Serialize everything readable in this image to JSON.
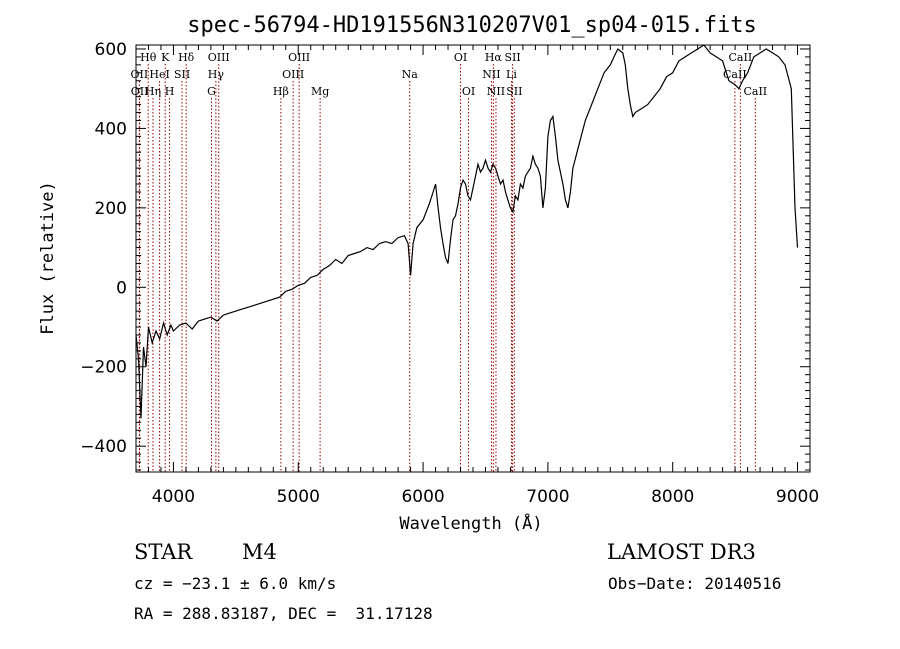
{
  "chart_data": {
    "type": "line",
    "title": "spec-56794-HD191556N310207V01_sp04-015.fits",
    "xlabel": "Wavelength (Å)",
    "ylabel": "Flux (relative)",
    "xlim": [
      3700,
      9100
    ],
    "ylim": [
      -465,
      610
    ],
    "x_ticks": [
      4000,
      5000,
      6000,
      7000,
      8000,
      9000
    ],
    "y_ticks": [
      -400,
      -200,
      0,
      200,
      400,
      600
    ],
    "line_color": "#000000",
    "marker_color": "#a00000",
    "series": [
      {
        "x": [
          3700,
          3720,
          3740,
          3760,
          3780,
          3800,
          3830,
          3860,
          3890,
          3920,
          3950,
          3980,
          4000,
          4050,
          4100,
          4150,
          4200,
          4250,
          4300,
          4350,
          4400,
          4450,
          4500,
          4550,
          4600,
          4650,
          4700,
          4750,
          4800,
          4850,
          4900,
          4950,
          5000,
          5050,
          5100,
          5150,
          5200,
          5250,
          5300,
          5350,
          5400,
          5450,
          5500,
          5550,
          5600,
          5650,
          5700,
          5750,
          5800,
          5850,
          5880,
          5900,
          5920,
          5950,
          6000,
          6050,
          6080,
          6100,
          6120,
          6140,
          6160,
          6180,
          6200,
          6220,
          6240,
          6260,
          6280,
          6300,
          6320,
          6340,
          6360,
          6380,
          6400,
          6420,
          6440,
          6460,
          6480,
          6500,
          6520,
          6540,
          6560,
          6580,
          6600,
          6620,
          6640,
          6660,
          6680,
          6700,
          6720,
          6740,
          6760,
          6780,
          6800,
          6820,
          6840,
          6860,
          6880,
          6900,
          6920,
          6940,
          6960,
          6980,
          7000,
          7020,
          7040,
          7060,
          7080,
          7100,
          7120,
          7140,
          7160,
          7180,
          7200,
          7250,
          7300,
          7350,
          7400,
          7450,
          7500,
          7530,
          7560,
          7600,
          7620,
          7640,
          7660,
          7680,
          7700,
          7750,
          7800,
          7850,
          7900,
          7950,
          8000,
          8050,
          8100,
          8150,
          8200,
          8250,
          8300,
          8350,
          8400,
          8450,
          8500,
          8530,
          8560,
          8600,
          8650,
          8700,
          8750,
          8800,
          8850,
          8900,
          8950,
          8980,
          9000
        ],
        "y": [
          -120,
          -180,
          -330,
          -150,
          -200,
          -100,
          -140,
          -110,
          -130,
          -90,
          -120,
          -95,
          -110,
          -95,
          -90,
          -105,
          -85,
          -80,
          -75,
          -85,
          -70,
          -65,
          -60,
          -55,
          -50,
          -45,
          -40,
          -35,
          -30,
          -25,
          -10,
          -5,
          5,
          10,
          25,
          30,
          45,
          55,
          70,
          60,
          80,
          85,
          90,
          100,
          95,
          110,
          115,
          110,
          125,
          130,
          110,
          30,
          110,
          150,
          170,
          210,
          240,
          260,
          200,
          150,
          110,
          75,
          60,
          120,
          170,
          180,
          210,
          250,
          270,
          260,
          230,
          220,
          250,
          280,
          310,
          290,
          300,
          320,
          300,
          290,
          310,
          300,
          280,
          260,
          270,
          240,
          220,
          200,
          190,
          230,
          220,
          260,
          250,
          280,
          290,
          300,
          330,
          310,
          300,
          280,
          200,
          250,
          380,
          420,
          430,
          380,
          320,
          290,
          260,
          220,
          200,
          240,
          300,
          360,
          420,
          460,
          500,
          540,
          560,
          580,
          600,
          590,
          560,
          500,
          460,
          430,
          440,
          450,
          460,
          480,
          500,
          530,
          540,
          570,
          580,
          590,
          600,
          610,
          590,
          580,
          570,
          520,
          510,
          500,
          520,
          540,
          580,
          590,
          600,
          590,
          580,
          560,
          500,
          200,
          100
        ]
      }
    ],
    "lines": [
      {
        "label": "Hθ",
        "wl": 3798,
        "row": 0
      },
      {
        "label": "OII",
        "wl": 3727,
        "row": 1
      },
      {
        "label": "OII",
        "wl": 3729,
        "row": 2
      },
      {
        "label": "Hη",
        "wl": 3836,
        "row": 2
      },
      {
        "label": "K",
        "wl": 3934,
        "row": 0
      },
      {
        "label": "HeI",
        "wl": 3889,
        "row": 1
      },
      {
        "label": "SII",
        "wl": 4069,
        "row": 1
      },
      {
        "label": "H",
        "wl": 3969,
        "row": 2
      },
      {
        "label": "Hδ",
        "wl": 4102,
        "row": 0
      },
      {
        "label": "OIII",
        "wl": 4363,
        "row": 0
      },
      {
        "label": "Hγ",
        "wl": 4340,
        "row": 1
      },
      {
        "label": "G",
        "wl": 4305,
        "row": 2
      },
      {
        "label": "Hβ",
        "wl": 4861,
        "row": 2
      },
      {
        "label": "OIII",
        "wl": 5007,
        "row": 0
      },
      {
        "label": "OIII",
        "wl": 4959,
        "row": 1
      },
      {
        "label": "Mg",
        "wl": 5175,
        "row": 2
      },
      {
        "label": "Na",
        "wl": 5893,
        "row": 1
      },
      {
        "label": "OI",
        "wl": 6300,
        "row": 0
      },
      {
        "label": "OI",
        "wl": 6364,
        "row": 2
      },
      {
        "label": "Hα",
        "wl": 6563,
        "row": 0
      },
      {
        "label": "NII",
        "wl": 6548,
        "row": 1
      },
      {
        "label": "NII",
        "wl": 6584,
        "row": 2
      },
      {
        "label": "SII",
        "wl": 6717,
        "row": 0
      },
      {
        "label": "Li",
        "wl": 6708,
        "row": 1
      },
      {
        "label": "SII",
        "wl": 6731,
        "row": 2
      },
      {
        "label": "CaII",
        "wl": 8542,
        "row": 0
      },
      {
        "label": "CaII",
        "wl": 8498,
        "row": 1
      },
      {
        "label": "CaII",
        "wl": 8662,
        "row": 2
      }
    ]
  },
  "info": {
    "object_class": "STAR",
    "subclass": "M4",
    "survey": "LAMOST DR3",
    "cz": "cz = −23.1 ± 6.0 km/s",
    "obs_date": "Obs−Date: 20140516",
    "coords": "RA = 288.83187, DEC =  31.17128"
  }
}
